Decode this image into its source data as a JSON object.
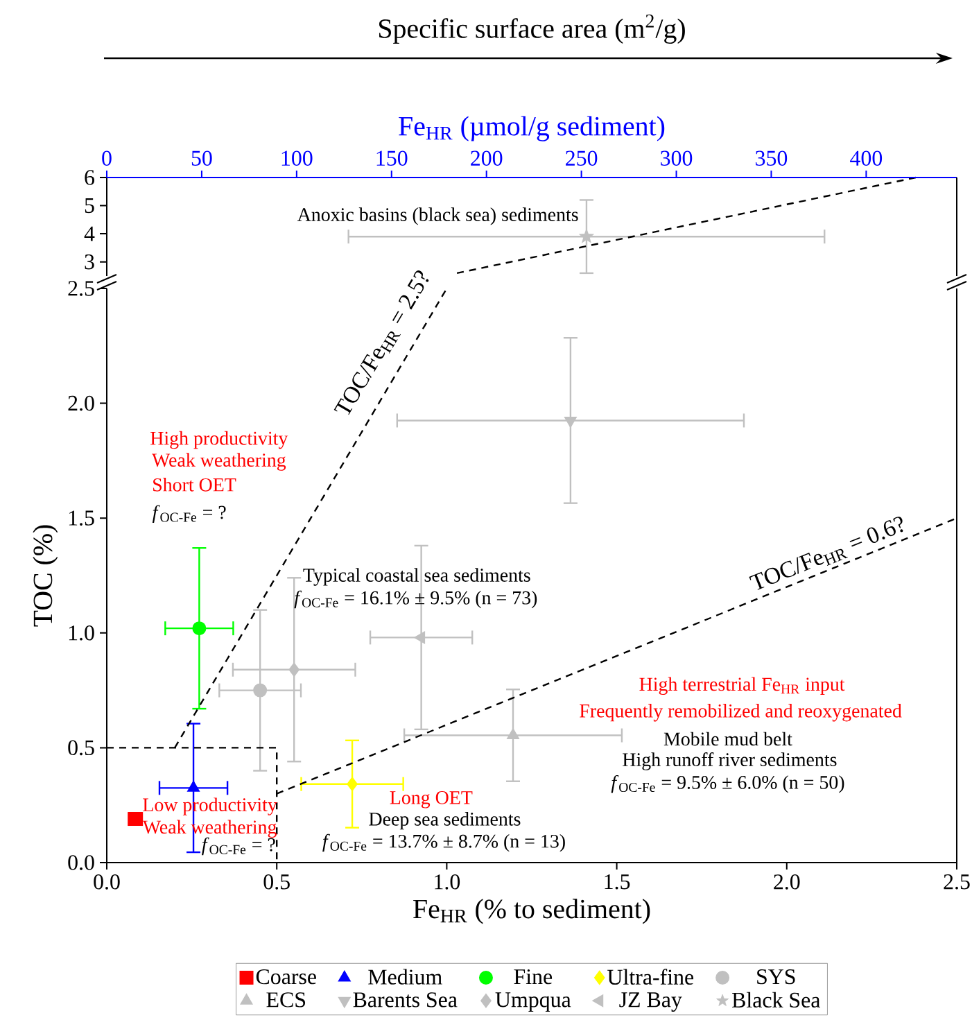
{
  "chart_data": [
    {
      "type": "scatter",
      "title": "Specific surface area (m$^{2}$/g)",
      "x2label": "Fe$_{HR}$ (µmol/g sediment)",
      "xlim": [
        0,
        2.5
      ],
      "x2lim": [
        0,
        447.7
      ],
      "x2ticks": [
        0,
        50,
        100,
        150,
        200,
        250,
        300,
        350,
        400
      ],
      "ylim": [
        2.5,
        6
      ],
      "yticks": [
        3,
        4,
        5,
        6
      ],
      "tick_labels": "y",
      "annotations": [
        "Anoxic basins (black sea) sediments"
      ],
      "series": [
        {
          "name": "Black Sea",
          "marker": "star",
          "color": "#c0c0c0",
          "x": [
            1.411
          ],
          "values": [
            3.9
          ],
          "errors": [
            1.3
          ],
          "xerrors": [
            0.7
          ]
        },
        {
          "type": "line",
          "line_style": "dashed",
          "color": "#000000",
          "x": [
            1.03,
            2.38
          ],
          "values": [
            2.6,
            6
          ]
        }
      ]
    },
    {
      "type": "scatter",
      "xlabel": "Fe$_{HR}$ (% to sediment)",
      "ylabel": "TOC (%)",
      "xlim": [
        0,
        2.5
      ],
      "xticks": [
        {
          "value": 0,
          "label": "0.0"
        },
        {
          "value": 0.5,
          "label": "0.5"
        },
        {
          "value": 1,
          "label": "1.0"
        },
        {
          "value": 1.5,
          "label": "1.5"
        },
        {
          "value": 2,
          "label": "2.0"
        },
        {
          "value": 2.5,
          "label": "2.5"
        }
      ],
      "ylim": [
        0,
        2.5
      ],
      "yticks": [
        {
          "value": 0,
          "label": "0.0"
        },
        {
          "value": 0.5,
          "label": "0.5"
        },
        {
          "value": 1,
          "label": "1.0"
        },
        {
          "value": 1.5,
          "label": "1.5"
        },
        {
          "value": 2,
          "label": "2.0"
        },
        {
          "value": 2.5,
          "label": "2.5"
        }
      ],
      "legend": "bottom",
      "annotations": [
        "High productivity",
        "Weak weathering",
        "Short OET",
        "*f*$_{OC-Fe}$ = ?",
        "Typical coastal sea sediments",
        "*f*$_{OC-Fe}$ = 16.1% ± 9.5% (n = 73)",
        "High terrestrial Fe$_{HR}$ input",
        "Frequently remobilized and reoxygenated",
        "Mobile mud belt",
        "High runoff river sediments",
        "*f*$_{OC-Fe}$ = 9.5% ± 6.0% (n = 50)",
        "Long OET",
        "Deep sea sediments",
        "*f*$_{OC-Fe}$ = 13.7% ± 8.7% (n = 13)",
        "Low productivity",
        "Weak weathering",
        "*f*$_{OC-Fe}$ = ?",
        "TOC/Fe$_{HR}$ = 2.5?",
        "TOC/Fe$_{HR}$ = 0.6?"
      ],
      "series": [
        {
          "name": "Coarse",
          "marker": "square",
          "color": "#ff0000",
          "x": [
            0.084
          ],
          "values": [
            0.19
          ],
          "errors": [
            0.02
          ],
          "xerrors": [
            0.02
          ]
        },
        {
          "name": "Medium",
          "marker": "triangle",
          "color": "#0000ff",
          "x": [
            0.255
          ],
          "values": [
            0.325
          ],
          "errors": [
            0.28
          ],
          "xerrors": [
            0.1
          ]
        },
        {
          "name": "Fine",
          "marker": "circle",
          "color": "#00ff00",
          "x": [
            0.272
          ],
          "values": [
            1.02
          ],
          "errors": [
            0.35
          ],
          "xerrors": [
            0.1
          ]
        },
        {
          "name": "Ultra-fine",
          "marker": "diamond",
          "color": "#ffff00",
          "x": [
            0.722
          ],
          "values": [
            0.342
          ],
          "errors": [
            0.19
          ],
          "xerrors": [
            0.15
          ]
        },
        {
          "name": "SYS",
          "marker": "circle",
          "color": "#c0c0c0",
          "x": [
            0.451
          ],
          "values": [
            0.75
          ],
          "errors": [
            0.35
          ],
          "xerrors": [
            0.12
          ]
        },
        {
          "name": "ECS",
          "marker": "triangle",
          "color": "#c0c0c0",
          "x": [
            1.195
          ],
          "values": [
            0.554
          ],
          "errors": [
            0.2
          ],
          "xerrors": [
            0.32
          ]
        },
        {
          "name": "Barents Sea",
          "marker": "triangle down",
          "color": "#c0c0c0",
          "x": [
            1.364
          ],
          "values": [
            1.925
          ],
          "errors": [
            0.36
          ],
          "xerrors": [
            0.51
          ]
        },
        {
          "name": "Umpqua",
          "marker": "diamond",
          "color": "#c0c0c0",
          "x": [
            0.551
          ],
          "values": [
            0.84
          ],
          "errors": [
            0.4
          ],
          "xerrors": [
            0.18
          ]
        },
        {
          "name": "JZ Bay",
          "marker": "triangle left",
          "color": "#c0c0c0",
          "x": [
            0.925
          ],
          "values": [
            0.98
          ],
          "errors": [
            0.4
          ],
          "xerrors": [
            0.15
          ]
        },
        {
          "type": "line",
          "line_style": "dashed",
          "color": "#000000",
          "x": [
            0,
            0.5,
            0.5
          ],
          "values": [
            0.5,
            0.5,
            0
          ]
        },
        {
          "type": "line",
          "line_style": "dashed",
          "color": "#000000",
          "x": [
            0.2,
            1.0
          ],
          "values": [
            0.5,
            2.5
          ]
        },
        {
          "type": "line",
          "line_style": "dashed",
          "color": "#000000",
          "x": [
            0.5,
            2.5
          ],
          "values": [
            0.3,
            1.5
          ]
        }
      ]
    }
  ]
}
